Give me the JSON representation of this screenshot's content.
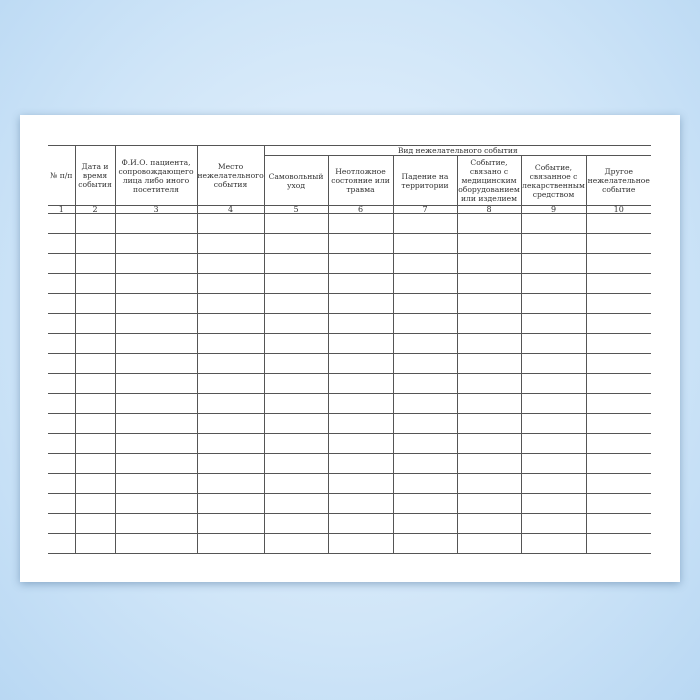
{
  "table": {
    "group_header": "Вид нежелательного события",
    "columns": [
      "№ п/п",
      "Дата и время события",
      "Ф.И.О. пациента, сопровождающего лица либо иного посетителя",
      "Место нежелательного события",
      "Самовольный уход",
      "Неотложное состояние или травма",
      "Падение на территории",
      "Событие, связано с медицинским оборудованием или изделием",
      "Событие, связанное с лекарственным средством",
      "Другое нежелательное событие"
    ],
    "column_numbers": [
      "1",
      "2",
      "3",
      "4",
      "5",
      "6",
      "7",
      "8",
      "9",
      "10"
    ],
    "empty_rows": 17
  }
}
